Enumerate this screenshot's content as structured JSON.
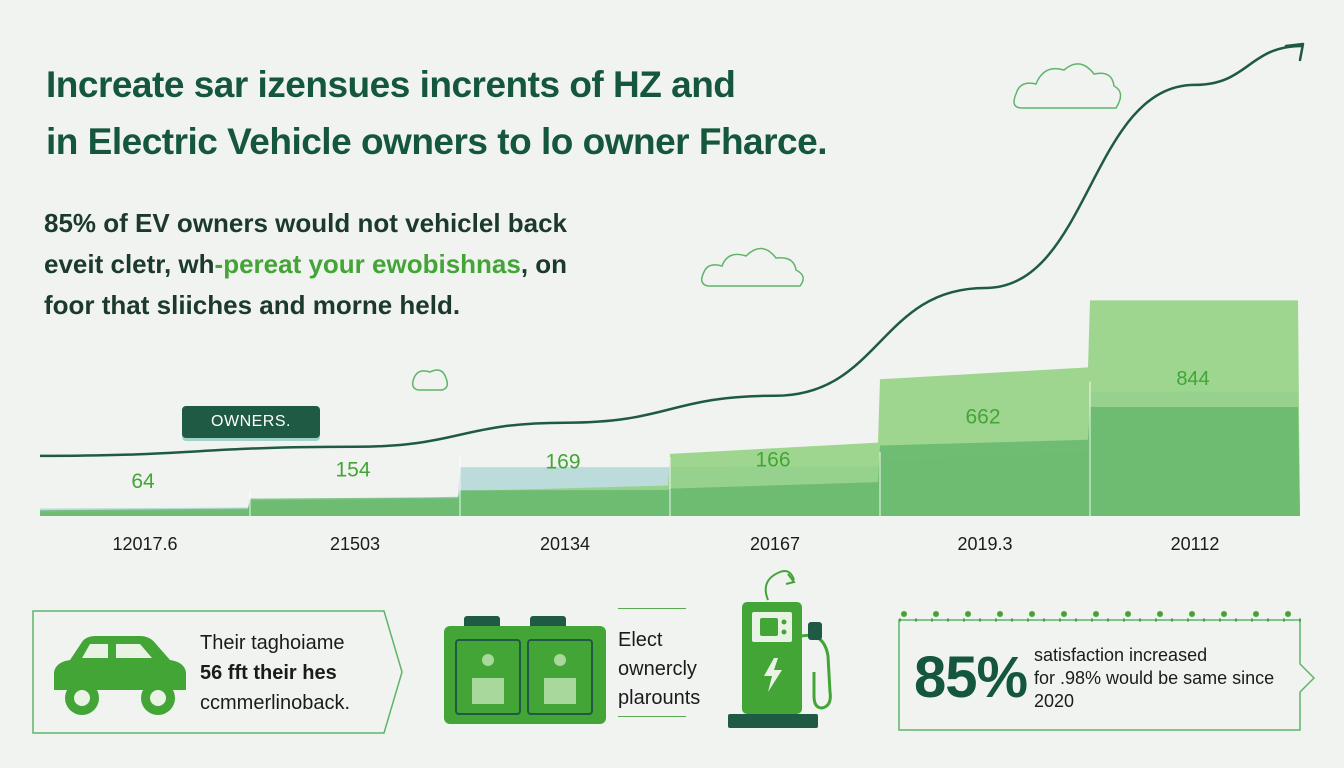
{
  "infographic": {
    "title_line1": "Increate sar izensues incrents of HZ and",
    "title_line2": "in Electric Vehicle owners to lo owner Fharce.",
    "subtitle_line1": "85% of EV owners would not vehiclel back",
    "subtitle_line2_a": "eveit cletr, wh",
    "subtitle_line2_b": "-pereat your ewobishnas",
    "subtitle_line2_c": ", on",
    "subtitle_line3": "foor that sliiches and morne held.",
    "owners_tag": "OWNERS.",
    "card_left_line1": "Their taghoiame",
    "card_left_line2": "56 fft  their hes",
    "card_left_line3": "ccmmerlinoback.",
    "mid_line1": "Elect",
    "mid_line2": "ownercly",
    "mid_line3": "plarounts",
    "big_stat": "85%",
    "stat_line1": "satisfaction increased",
    "stat_line2": "for .98% would be same since",
    "stat_line3": "2020"
  },
  "colors": {
    "dark_green": "#14573c",
    "bright_green": "#43a536",
    "mid_green": "#5fb46a",
    "light_green": "#8fd07f",
    "teal": "#a9d3d3",
    "trend_line": "#1f5a45"
  },
  "chart_data": {
    "type": "area",
    "categories": [
      "12017.6",
      "21503",
      "20134",
      "20167",
      "2019.3",
      "20112"
    ],
    "data_labels": [
      "64",
      "154",
      "169",
      "166",
      "662",
      "844"
    ],
    "series": [
      {
        "values": [
          10,
          38,
          60,
          150,
          330,
          520
        ]
      },
      {
        "values": [
          14,
          42,
          62,
          66,
          170,
          263
        ]
      },
      {
        "values": [
          18,
          34,
          118,
          118,
          130,
          300
        ]
      },
      {
        "values": [
          145,
          167,
          225,
          290,
          550,
          1040
        ]
      }
    ],
    "ylim": [
      0,
      1100
    ],
    "grid": false,
    "legend": "none"
  }
}
